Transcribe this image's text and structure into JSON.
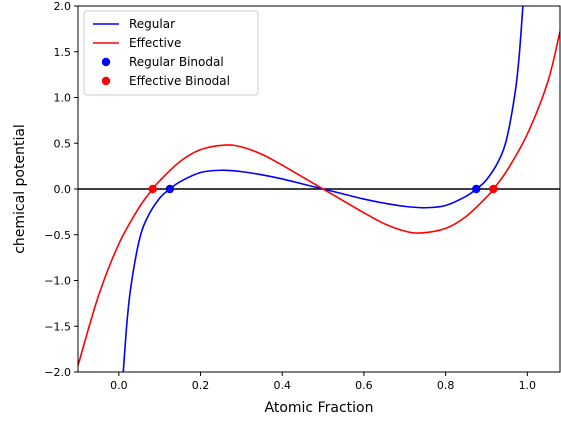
{
  "chart_data": {
    "type": "line",
    "title": "",
    "xlabel": "Atomic Fraction",
    "ylabel": "chemical potential",
    "xlim": [
      -0.1,
      1.08
    ],
    "ylim": [
      -2.0,
      2.0
    ],
    "xticks": [
      0.0,
      0.2,
      0.4,
      0.6,
      0.8,
      1.0
    ],
    "xtick_labels": [
      "0.0",
      "0.2",
      "0.4",
      "0.6",
      "0.8",
      "1.0"
    ],
    "yticks": [
      -2.0,
      -1.5,
      -1.0,
      -0.5,
      0.0,
      0.5,
      1.0,
      1.5,
      2.0
    ],
    "ytick_labels": [
      "−2.0",
      "−1.5",
      "−1.0",
      "−0.5",
      "0.0",
      "0.5",
      "1.0",
      "1.5",
      "2.0"
    ],
    "grid": false,
    "legend_position": "top-left",
    "hline": {
      "y": 0.0,
      "color": "#000000"
    },
    "series": [
      {
        "name": "Regular",
        "kind": "line",
        "color": "#0000ff",
        "x": [
          0.01,
          0.02,
          0.03,
          0.05,
          0.07,
          0.1,
          0.125,
          0.15,
          0.2,
          0.25,
          0.3,
          0.35,
          0.4,
          0.45,
          0.5,
          0.55,
          0.6,
          0.65,
          0.7,
          0.75,
          0.8,
          0.85,
          0.875,
          0.9,
          0.93,
          0.95,
          0.97,
          0.98,
          0.99
        ],
        "y": [
          -2.05,
          -1.45,
          -1.05,
          -0.56,
          -0.31,
          -0.1,
          0.0,
          0.08,
          0.18,
          0.205,
          0.19,
          0.155,
          0.11,
          0.055,
          0.0,
          -0.055,
          -0.11,
          -0.155,
          -0.19,
          -0.205,
          -0.18,
          -0.08,
          0.0,
          0.1,
          0.31,
          0.56,
          1.05,
          1.45,
          2.05
        ]
      },
      {
        "name": "Effective",
        "kind": "line",
        "color": "#ff0000",
        "x": [
          -0.1,
          -0.05,
          0.0,
          0.05,
          0.083,
          0.1,
          0.15,
          0.2,
          0.26,
          0.3,
          0.35,
          0.4,
          0.45,
          0.5,
          0.55,
          0.6,
          0.65,
          0.7,
          0.74,
          0.8,
          0.85,
          0.9,
          0.917,
          0.95,
          1.0,
          1.05,
          1.08
        ],
        "y": [
          -1.93,
          -1.17,
          -0.6,
          -0.2,
          0.0,
          0.09,
          0.3,
          0.43,
          0.48,
          0.46,
          0.38,
          0.26,
          0.13,
          0.0,
          -0.13,
          -0.26,
          -0.38,
          -0.46,
          -0.48,
          -0.43,
          -0.3,
          -0.09,
          0.0,
          0.2,
          0.6,
          1.17,
          1.72
        ]
      },
      {
        "name": "Regular Binodal",
        "kind": "points",
        "color": "#0000ff",
        "x": [
          0.125,
          0.875
        ],
        "y": [
          0.0,
          0.0
        ]
      },
      {
        "name": "Effective Binodal",
        "kind": "points",
        "color": "#ff0000",
        "x": [
          0.083,
          0.917
        ],
        "y": [
          0.0,
          0.0
        ]
      }
    ]
  }
}
